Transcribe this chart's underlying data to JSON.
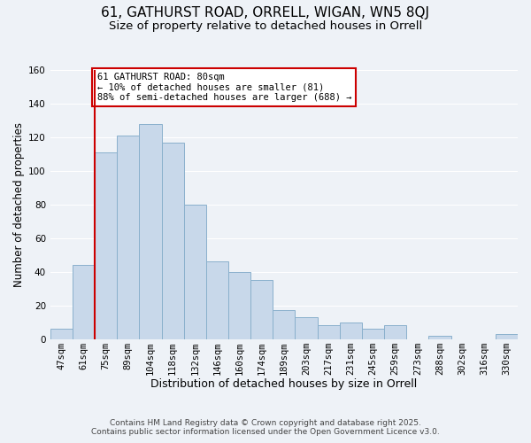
{
  "title": "61, GATHURST ROAD, ORRELL, WIGAN, WN5 8QJ",
  "subtitle": "Size of property relative to detached houses in Orrell",
  "xlabel": "Distribution of detached houses by size in Orrell",
  "ylabel": "Number of detached properties",
  "categories": [
    "47sqm",
    "61sqm",
    "75sqm",
    "89sqm",
    "104sqm",
    "118sqm",
    "132sqm",
    "146sqm",
    "160sqm",
    "174sqm",
    "189sqm",
    "203sqm",
    "217sqm",
    "231sqm",
    "245sqm",
    "259sqm",
    "273sqm",
    "288sqm",
    "302sqm",
    "316sqm",
    "330sqm"
  ],
  "values": [
    6,
    44,
    111,
    121,
    128,
    117,
    80,
    46,
    40,
    35,
    17,
    13,
    8,
    10,
    6,
    8,
    0,
    2,
    0,
    0,
    3
  ],
  "bar_color": "#c8d8ea",
  "bar_edge_color": "#8ab0cc",
  "annotation_text": "61 GATHURST ROAD: 80sqm\n← 10% of detached houses are smaller (81)\n88% of semi-detached houses are larger (688) →",
  "annotation_box_color": "white",
  "annotation_box_edge_color": "#cc0000",
  "vline_color": "#cc0000",
  "vline_index": 2,
  "ylim": [
    0,
    160
  ],
  "yticks": [
    0,
    20,
    40,
    60,
    80,
    100,
    120,
    140,
    160
  ],
  "footer1": "Contains HM Land Registry data © Crown copyright and database right 2025.",
  "footer2": "Contains public sector information licensed under the Open Government Licence v3.0.",
  "background_color": "#eef2f7",
  "grid_color": "#ffffff",
  "title_fontsize": 11,
  "subtitle_fontsize": 9.5,
  "xlabel_fontsize": 9,
  "ylabel_fontsize": 8.5,
  "tick_fontsize": 7.5,
  "annotation_fontsize": 7.5,
  "footer_fontsize": 6.5
}
